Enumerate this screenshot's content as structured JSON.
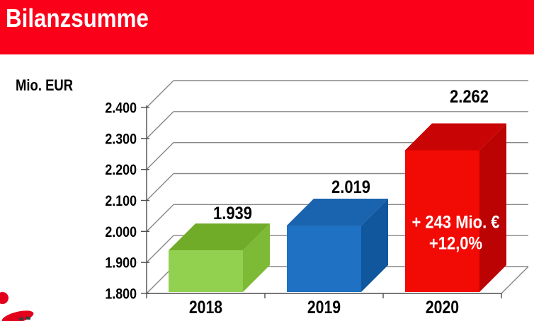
{
  "header": {
    "title": "Bilanzsumme"
  },
  "unit_label": "Mio. EUR",
  "colors": {
    "brand_red": "#FA0019",
    "grid": "#878787",
    "axis": "#4D4D4D",
    "label": "#000000",
    "annotation_text": "#FFFFFF",
    "logo_red": "#E3001B"
  },
  "chart_data": {
    "type": "bar",
    "projection": "3d-oblique",
    "title": "Bilanzsumme",
    "unit": "Mio. EUR",
    "categories": [
      "2018",
      "2019",
      "2020"
    ],
    "values": [
      1939,
      2019,
      2262
    ],
    "value_labels": [
      "1.939",
      "2.019",
      "2.262"
    ],
    "ylim": [
      1800,
      2400
    ],
    "ytick_step": 100,
    "ytick_labels": [
      "1.800",
      "1.900",
      "2.000",
      "2.100",
      "2.200",
      "2.300",
      "2.400"
    ],
    "grid": true,
    "legend": false,
    "bar_colors": [
      {
        "front": "#92D050",
        "top": "#71AC29",
        "side": "#7DBA35"
      },
      {
        "front": "#1E71C3",
        "top": "#1A63AE",
        "side": "#11579E"
      },
      {
        "front": "#F20A05",
        "top": "#C90404",
        "side": "#BB0303"
      }
    ],
    "annotation": {
      "bar_index": 2,
      "lines": [
        "+ 243 Mio. €",
        "+12,0%"
      ]
    }
  }
}
